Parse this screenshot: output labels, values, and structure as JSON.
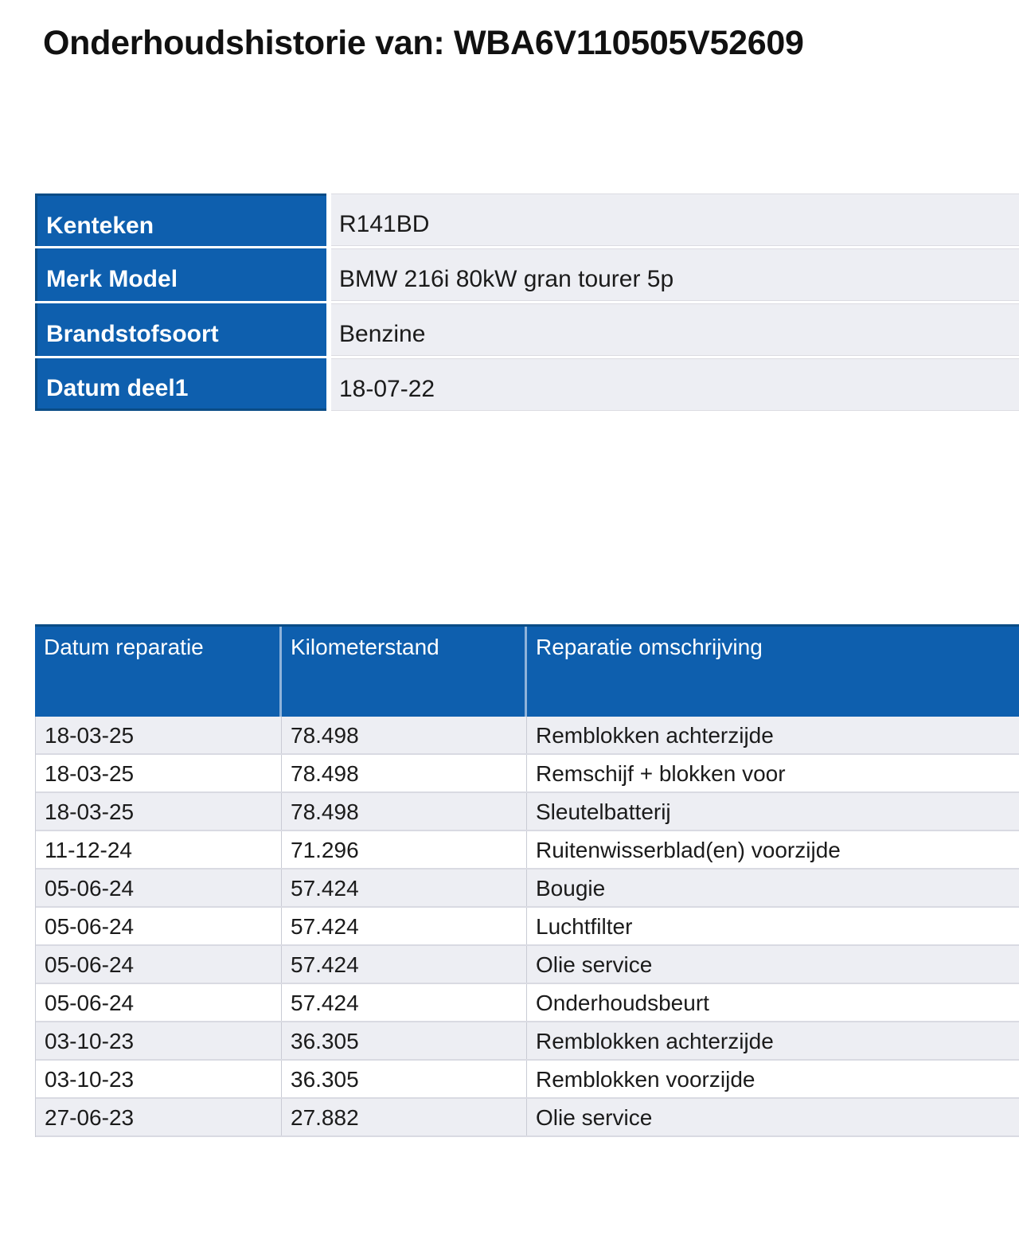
{
  "title": "Onderhoudshistorie van: WBA6V110505V52609",
  "vehicle_info": {
    "rows": [
      {
        "label": "Kenteken",
        "value": "R141BD"
      },
      {
        "label": "Merk Model",
        "value": "BMW 216i 80kW gran tourer 5p"
      },
      {
        "label": "Brandstofsoort",
        "value": "Benzine"
      },
      {
        "label": "Datum deel1",
        "value": "18-07-22"
      }
    ]
  },
  "repair_history": {
    "headers": [
      "Datum reparatie",
      "Kilometerstand",
      "Reparatie omschrijving"
    ],
    "rows": [
      {
        "date": "18-03-25",
        "km": "78.498",
        "description": "Remblokken achterzijde"
      },
      {
        "date": "18-03-25",
        "km": "78.498",
        "description": "Remschijf + blokken voor"
      },
      {
        "date": "18-03-25",
        "km": "78.498",
        "description": "Sleutelbatterij"
      },
      {
        "date": "11-12-24",
        "km": "71.296",
        "description": "Ruitenwisserblad(en) voorzijde"
      },
      {
        "date": "05-06-24",
        "km": "57.424",
        "description": "Bougie"
      },
      {
        "date": "05-06-24",
        "km": "57.424",
        "description": "Luchtfilter"
      },
      {
        "date": "05-06-24",
        "km": "57.424",
        "description": "Olie service"
      },
      {
        "date": "05-06-24",
        "km": "57.424",
        "description": "Onderhoudsbeurt"
      },
      {
        "date": "03-10-23",
        "km": "36.305",
        "description": "Remblokken achterzijde"
      },
      {
        "date": "03-10-23",
        "km": "36.305",
        "description": "Remblokken voorzijde"
      },
      {
        "date": "27-06-23",
        "km": "27.882",
        "description": "Olie service"
      }
    ]
  },
  "colors": {
    "table_blue": "#0E5FAE",
    "table_blue_dark_border": "#0A4C86",
    "header_separator_blue": "#8FB3DA",
    "row_gray": "#EDEEF3",
    "row_white": "#FFFFFF",
    "row_separator": "#D9DAE2",
    "text_dark": "#1B1B1B"
  }
}
